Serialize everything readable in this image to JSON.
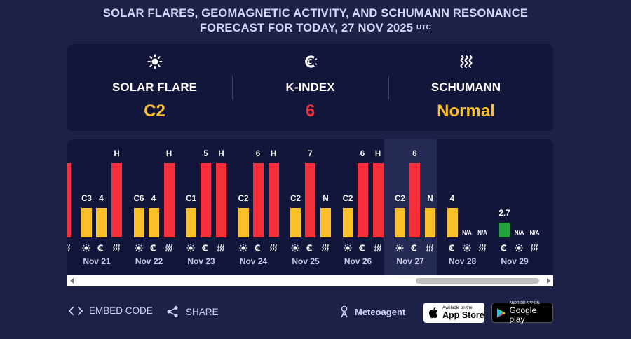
{
  "header": {
    "title_line1": "SOLAR FLARES, GEOMAGNETIC ACTIVITY, AND SCHUMANN RESONANCE",
    "title_line2": "FORECAST FOR TODAY, 27 NOV 2025",
    "title_tz": "UTC"
  },
  "summary": {
    "solar": {
      "label": "SOLAR FLARE",
      "value": "C2",
      "color": "#fbbf2a"
    },
    "kindex": {
      "label": "K-INDEX",
      "value": "6",
      "color": "#f5303a"
    },
    "schumann": {
      "label": "SCHUMANN",
      "value": "Normal",
      "color": "#fbbf2a"
    }
  },
  "colors": {
    "yellow": "#fbbf2a",
    "red": "#f5303a",
    "green": "#22a23a"
  },
  "chart": {
    "days": [
      {
        "date": "Nov 21",
        "solar": {
          "label": "C3",
          "level": 0.4,
          "color": "yellow"
        },
        "k": {
          "label": "4",
          "level": 0.4,
          "color": "yellow"
        },
        "s": {
          "label": "H",
          "level": 1.0,
          "color": "red"
        }
      },
      {
        "date": "Nov 22",
        "solar": {
          "label": "C6",
          "level": 0.4,
          "color": "yellow"
        },
        "k": {
          "label": "4",
          "level": 0.4,
          "color": "yellow"
        },
        "s": {
          "label": "H",
          "level": 1.0,
          "color": "red"
        }
      },
      {
        "date": "Nov 23",
        "solar": {
          "label": "C1",
          "level": 0.4,
          "color": "yellow"
        },
        "k": {
          "label": "5",
          "level": 1.0,
          "color": "red"
        },
        "s": {
          "label": "H",
          "level": 1.0,
          "color": "red"
        }
      },
      {
        "date": "Nov 24",
        "solar": {
          "label": "C2",
          "level": 0.4,
          "color": "yellow"
        },
        "k": {
          "label": "6",
          "level": 1.0,
          "color": "red"
        },
        "s": {
          "label": "H",
          "level": 1.0,
          "color": "red"
        }
      },
      {
        "date": "Nov 25",
        "solar": {
          "label": "C2",
          "level": 0.4,
          "color": "yellow"
        },
        "k": {
          "label": "7",
          "level": 1.0,
          "color": "red"
        },
        "s": {
          "label": "N",
          "level": 0.4,
          "color": "yellow"
        }
      },
      {
        "date": "Nov 26",
        "solar": {
          "label": "C2",
          "level": 0.4,
          "color": "yellow"
        },
        "k": {
          "label": "6",
          "level": 1.0,
          "color": "red"
        },
        "s": {
          "label": "H",
          "level": 1.0,
          "color": "red"
        }
      },
      {
        "date": "Nov 27",
        "today": true,
        "solar": {
          "label": "C2",
          "level": 0.4,
          "color": "yellow"
        },
        "k": {
          "label": "6",
          "level": 1.0,
          "color": "red"
        },
        "s": {
          "label": "N",
          "level": 0.4,
          "color": "yellow"
        }
      },
      {
        "date": "Nov 28",
        "order": [
          "k",
          "solar",
          "s"
        ],
        "k": {
          "label": "4",
          "level": 0.4,
          "color": "yellow"
        },
        "solar": {
          "label": "N/A",
          "level": 0,
          "color": "yellow"
        },
        "s": {
          "label": "N/A",
          "level": 0,
          "color": "yellow"
        }
      },
      {
        "date": "Nov 29",
        "order": [
          "k",
          "solar",
          "s"
        ],
        "k": {
          "label": "2.7",
          "level": 0.2,
          "color": "green"
        },
        "solar": {
          "label": "N/A",
          "level": 0,
          "color": "yellow"
        },
        "s": {
          "label": "N/A",
          "level": 0,
          "color": "yellow"
        }
      }
    ],
    "partial_left": {
      "k_color": "red"
    }
  },
  "footer": {
    "embed": "EMBED CODE",
    "share": "SHARE",
    "brand": "Meteoagent",
    "appstore_small": "Available on the",
    "appstore_big": "App Store",
    "gplay_small": "ANDROID APP ON",
    "gplay_big": "Google play"
  }
}
